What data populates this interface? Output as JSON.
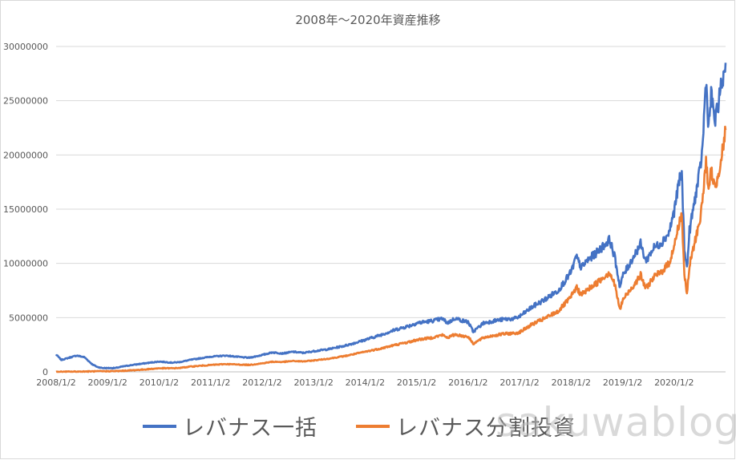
{
  "chart_data": {
    "type": "line",
    "title": "2008年～2020年資産推移",
    "ylim": [
      0,
      30000000
    ],
    "y_ticks": [
      "0",
      "5000000",
      "10000000",
      "15000000",
      "20000000",
      "25000000",
      "30000000"
    ],
    "x_ticks": [
      "2008/1/2",
      "2009/1/2",
      "2010/1/2",
      "2011/1/2",
      "2012/1/2",
      "2013/1/2",
      "2014/1/2",
      "2015/1/2",
      "2016/1/2",
      "2017/1/2",
      "2018/1/2",
      "2019/1/2",
      "2020/1/2"
    ],
    "x_range": [
      2008.0,
      2021.0
    ],
    "grid": "horizontal",
    "legend_position": "bottom",
    "series": [
      {
        "name": "レバナス一括",
        "color": "#4472c4",
        "x": [
          2008.0,
          2008.1,
          2008.25,
          2008.4,
          2008.55,
          2008.7,
          2008.8,
          2008.9,
          2009.0,
          2009.15,
          2009.3,
          2009.5,
          2009.75,
          2010.0,
          2010.25,
          2010.4,
          2010.6,
          2010.8,
          2011.0,
          2011.3,
          2011.6,
          2011.75,
          2012.0,
          2012.2,
          2012.4,
          2012.6,
          2012.8,
          2013.0,
          2013.3,
          2013.6,
          2013.9,
          2014.0,
          2014.3,
          2014.6,
          2014.9,
          2015.0,
          2015.3,
          2015.5,
          2015.6,
          2015.75,
          2015.9,
          2016.0,
          2016.1,
          2016.3,
          2016.5,
          2016.7,
          2016.9,
          2017.0,
          2017.25,
          2017.5,
          2017.75,
          2018.0,
          2018.1,
          2018.2,
          2018.3,
          2018.5,
          2018.75,
          2018.85,
          2018.95,
          2019.0,
          2019.2,
          2019.35,
          2019.45,
          2019.6,
          2019.75,
          2019.9,
          2020.0,
          2020.1,
          2020.15,
          2020.2,
          2020.25,
          2020.3,
          2020.4,
          2020.5,
          2020.55,
          2020.62,
          2020.67,
          2020.72,
          2020.8,
          2020.9,
          2020.95,
          2021.0
        ],
        "y": [
          1600000,
          1100000,
          1300000,
          1500000,
          1350000,
          700000,
          450000,
          350000,
          350000,
          350000,
          500000,
          650000,
          800000,
          950000,
          850000,
          900000,
          1100000,
          1250000,
          1400000,
          1500000,
          1350000,
          1300000,
          1550000,
          1800000,
          1700000,
          1850000,
          1750000,
          1900000,
          2100000,
          2400000,
          2800000,
          2950000,
          3400000,
          3900000,
          4300000,
          4500000,
          4700000,
          4900000,
          4500000,
          4950000,
          4700000,
          4600000,
          3700000,
          4500000,
          4700000,
          4850000,
          4900000,
          5100000,
          6000000,
          6700000,
          7500000,
          9200000,
          10600000,
          9600000,
          10200000,
          11000000,
          12200000,
          10500000,
          7800000,
          8800000,
          10500000,
          11800000,
          10200000,
          11400000,
          11900000,
          12800000,
          14800000,
          17600000,
          18200000,
          11500000,
          9500000,
          13000000,
          15800000,
          18500000,
          20500000,
          27000000,
          22500000,
          25500000,
          23000000,
          26000000,
          27000000,
          28500000
        ]
      },
      {
        "name": "レバナス分割投資",
        "color": "#ed7d31",
        "x": [
          2008.0,
          2008.5,
          2009.0,
          2009.2,
          2009.5,
          2009.75,
          2010.0,
          2010.25,
          2010.4,
          2010.6,
          2010.8,
          2011.0,
          2011.3,
          2011.6,
          2011.75,
          2012.0,
          2012.2,
          2012.4,
          2012.6,
          2012.8,
          2013.0,
          2013.3,
          2013.6,
          2013.9,
          2014.0,
          2014.3,
          2014.6,
          2014.9,
          2015.0,
          2015.3,
          2015.5,
          2015.6,
          2015.75,
          2015.9,
          2016.0,
          2016.1,
          2016.3,
          2016.5,
          2016.7,
          2016.9,
          2017.0,
          2017.25,
          2017.5,
          2017.75,
          2018.0,
          2018.1,
          2018.2,
          2018.3,
          2018.5,
          2018.75,
          2018.85,
          2018.95,
          2019.0,
          2019.2,
          2019.35,
          2019.45,
          2019.6,
          2019.75,
          2019.9,
          2020.0,
          2020.1,
          2020.15,
          2020.2,
          2020.25,
          2020.3,
          2020.4,
          2020.5,
          2020.55,
          2020.62,
          2020.67,
          2020.72,
          2020.8,
          2020.9,
          2020.95,
          2021.0
        ],
        "y": [
          0,
          30000,
          60000,
          70000,
          150000,
          230000,
          330000,
          330000,
          360000,
          480000,
          560000,
          630000,
          720000,
          660000,
          640000,
          780000,
          930000,
          910000,
          1000000,
          960000,
          1050000,
          1220000,
          1450000,
          1750000,
          1850000,
          2150000,
          2500000,
          2800000,
          2950000,
          3150000,
          3400000,
          3150000,
          3450000,
          3300000,
          3250000,
          2600000,
          3150000,
          3350000,
          3500000,
          3550000,
          3650000,
          4400000,
          4950000,
          5600000,
          6900000,
          7800000,
          7100000,
          7500000,
          8200000,
          9200000,
          8000000,
          5700000,
          6600000,
          7900000,
          8900000,
          7700000,
          8700000,
          9200000,
          10000000,
          11500000,
          13800000,
          14500000,
          9000000,
          7100000,
          9800000,
          11900000,
          14000000,
          15600000,
          19600000,
          16400000,
          18600000,
          16800000,
          19400000,
          20600000,
          22300000
        ]
      }
    ]
  },
  "watermark": "sakuwablog"
}
